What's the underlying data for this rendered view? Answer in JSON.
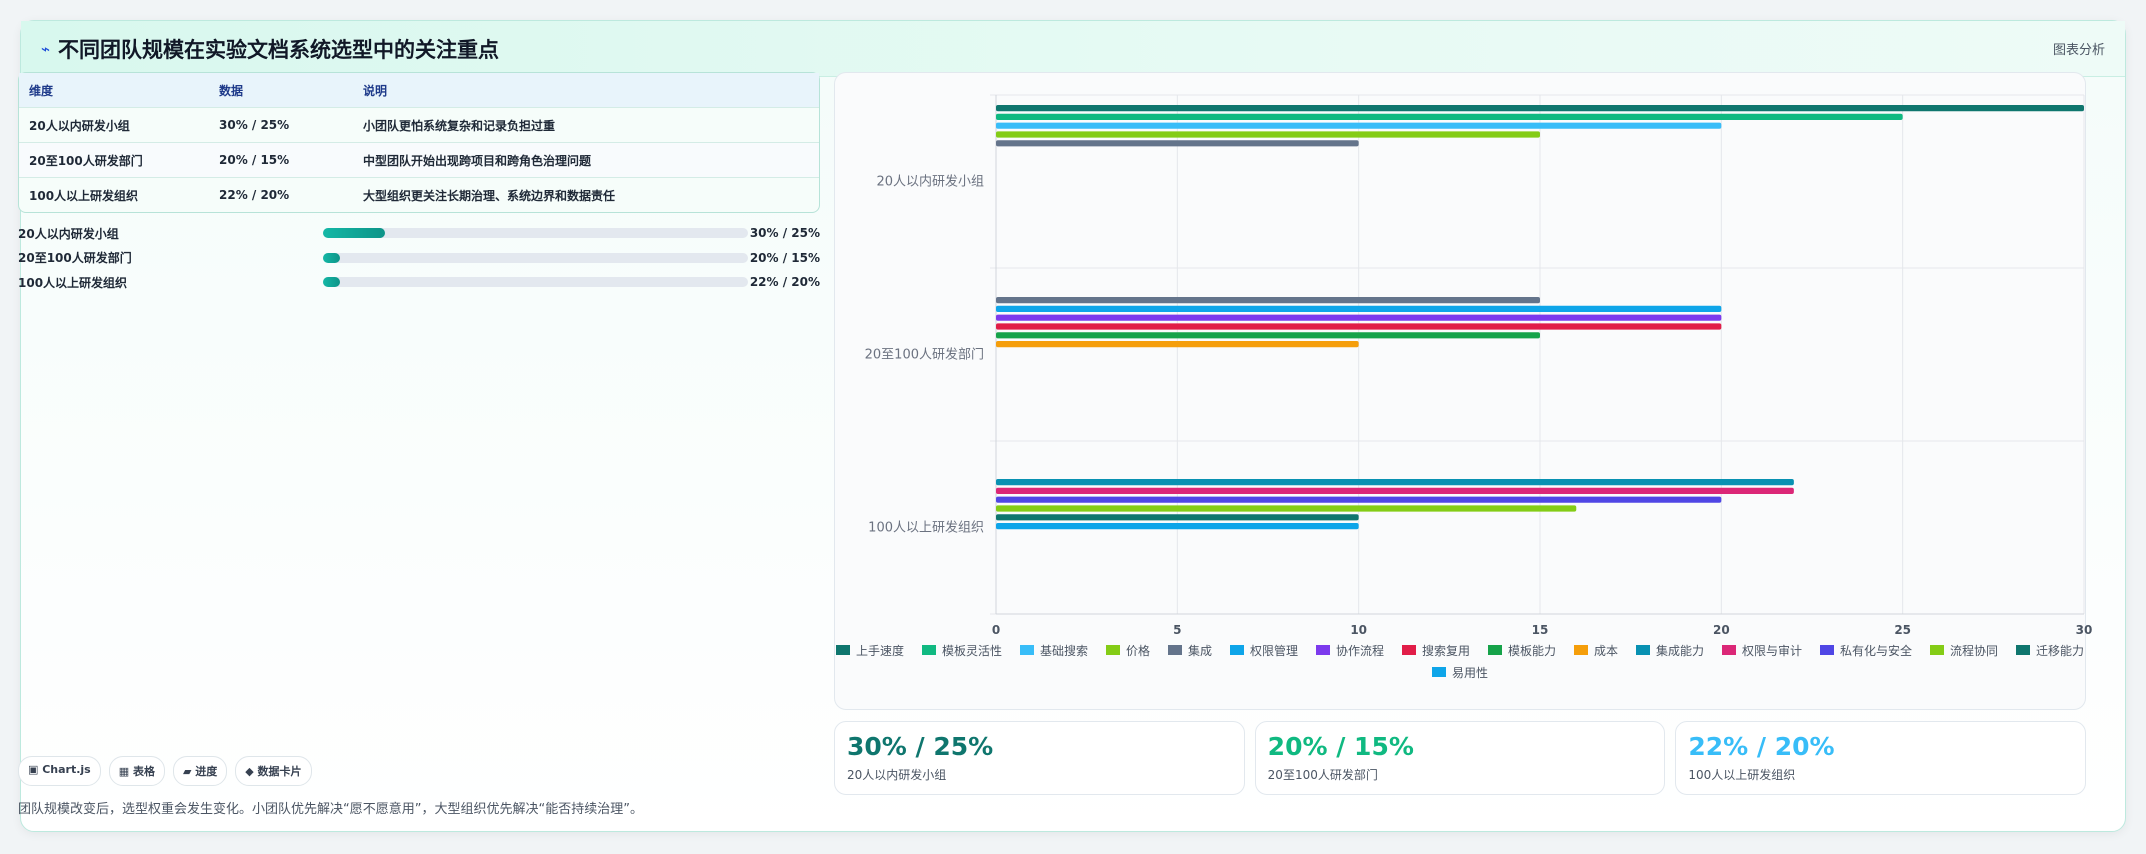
{
  "header": {
    "icon": "activity-icon",
    "title": "不同团队规模在实验文档系统选型中的关注重点",
    "link": "图表分析"
  },
  "table": {
    "headers": [
      "维度",
      "数据",
      "说明"
    ],
    "rows": [
      {
        "dim": "20人以内研发小组",
        "data": "30% / 25%",
        "desc": "小团队更怕系统复杂和记录负担过重"
      },
      {
        "dim": "20至100人研发部门",
        "data": "20% / 15%",
        "desc": "中型团队开始出现跨项目和跨角色治理问题"
      },
      {
        "dim": "100人以上研发组织",
        "data": "22% / 20%",
        "desc": "大型组织更关注长期治理、系统边界和数据责任"
      }
    ]
  },
  "progress": [
    {
      "label": "20人以内研发小组",
      "value": "30% / 25%",
      "fill": 0.145
    },
    {
      "label": "20至100人研发部门",
      "value": "20% / 15%",
      "fill": 0.04
    },
    {
      "label": "100人以上研发组织",
      "value": "22% / 20%",
      "fill": 0.04
    }
  ],
  "tags": [
    "▣ Chart.js",
    "▦ 表格",
    "▰ 进度",
    "◆ 数据卡片"
  ],
  "footnote": "团队规模改变后，选型权重会发生变化。小团队优先解决“愿不愿意用”，大型组织优先解决“能否持续治理”。",
  "kpis": [
    {
      "value": "30% / 25%",
      "label": "20人以内研发小组",
      "color": "#0f766e"
    },
    {
      "value": "20% / 15%",
      "label": "20至100人研发部门",
      "color": "#10b981"
    },
    {
      "value": "22% / 20%",
      "label": "100人以上研发组织",
      "color": "#38bdf8"
    }
  ],
  "chart_data": {
    "type": "bar",
    "orientation": "horizontal",
    "categories": [
      "20人以内研发小组",
      "20至100人研发部门",
      "100人以上研发组织"
    ],
    "xlim": [
      0,
      30
    ],
    "xticks": [
      0,
      5,
      10,
      15,
      20,
      25,
      30
    ],
    "grid": true,
    "legend_position": "bottom",
    "series": [
      {
        "name": "上手速度",
        "color": "#0f766e",
        "values": [
          30,
          null,
          null
        ]
      },
      {
        "name": "模板灵活性",
        "color": "#10b981",
        "values": [
          25,
          null,
          null
        ]
      },
      {
        "name": "基础搜索",
        "color": "#38bdf8",
        "values": [
          20,
          null,
          null
        ]
      },
      {
        "name": "价格",
        "color": "#84cc16",
        "values": [
          15,
          null,
          null
        ]
      },
      {
        "name": "集成",
        "color": "#64748b",
        "values": [
          10,
          15,
          null
        ]
      },
      {
        "name": "权限管理",
        "color": "#0ea5e9",
        "values": [
          null,
          20,
          null
        ]
      },
      {
        "name": "协作流程",
        "color": "#7c3aed",
        "values": [
          null,
          20,
          null
        ]
      },
      {
        "name": "搜索复用",
        "color": "#e11d48",
        "values": [
          null,
          20,
          null
        ]
      },
      {
        "name": "模板能力",
        "color": "#16a34a",
        "values": [
          null,
          15,
          null
        ]
      },
      {
        "name": "成本",
        "color": "#f59e0b",
        "values": [
          null,
          10,
          null
        ]
      },
      {
        "name": "集成能力",
        "color": "#0891b2",
        "values": [
          null,
          null,
          22
        ]
      },
      {
        "name": "权限与审计",
        "color": "#db2777",
        "values": [
          null,
          null,
          22
        ]
      },
      {
        "name": "私有化与安全",
        "color": "#4f46e5",
        "values": [
          null,
          null,
          20
        ]
      },
      {
        "name": "流程协同",
        "color": "#84cc16",
        "values": [
          null,
          null,
          16
        ]
      },
      {
        "name": "迁移能力",
        "color": "#0f766e",
        "values": [
          null,
          null,
          10
        ]
      },
      {
        "name": "易用性",
        "color": "#0ea5e9",
        "values": [
          null,
          null,
          10
        ]
      }
    ]
  }
}
